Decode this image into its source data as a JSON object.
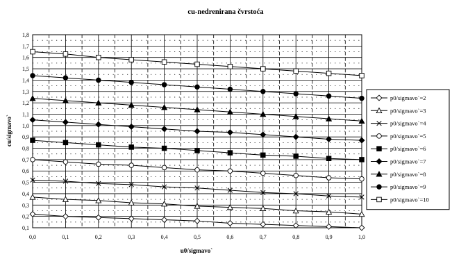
{
  "chart_data": {
    "type": "line",
    "title": "cu-nedrenirana čvrstoća",
    "xlabel": "u0/sigmavo`",
    "ylabel": "cu/sigmavo`",
    "xlim": [
      0,
      1
    ],
    "ylim": [
      0.1,
      1.8
    ],
    "x_ticks": [
      "0,0",
      "0,1",
      "0,2",
      "0,3",
      "0,4",
      "0,5",
      "0,6",
      "0,7",
      "0,8",
      "0,9",
      "1,0"
    ],
    "y_ticks": [
      "0,1",
      "0,2",
      "0,3",
      "0,4",
      "0,5",
      "0,6",
      "0,7",
      "0,8",
      "0,9",
      "1,0",
      "1,1",
      "1,2",
      "1,3",
      "1,4",
      "1,5",
      "1,6",
      "1,7",
      "1,8"
    ],
    "grid": true,
    "legend_position": "right",
    "x": [
      0.0,
      0.1,
      0.2,
      0.3,
      0.4,
      0.5,
      0.6,
      0.7,
      0.8,
      0.9,
      1.0
    ],
    "series": [
      {
        "name": "p0/sigmavo`=2",
        "marker": "diamond-open",
        "values": [
          0.22,
          0.2,
          0.19,
          0.18,
          0.17,
          0.16,
          0.14,
          0.13,
          0.12,
          0.11,
          0.1
        ]
      },
      {
        "name": "p0/sigmavo`=3",
        "marker": "triangle-open",
        "values": [
          0.37,
          0.35,
          0.34,
          0.32,
          0.31,
          0.29,
          0.28,
          0.27,
          0.25,
          0.24,
          0.22
        ]
      },
      {
        "name": "p0/sigmavo`=4",
        "marker": "x",
        "values": [
          0.52,
          0.51,
          0.49,
          0.48,
          0.46,
          0.45,
          0.43,
          0.41,
          0.4,
          0.38,
          0.37
        ]
      },
      {
        "name": "p0/sigmavo`=5",
        "marker": "circle-open",
        "values": [
          0.7,
          0.68,
          0.66,
          0.65,
          0.63,
          0.61,
          0.6,
          0.58,
          0.56,
          0.54,
          0.53
        ]
      },
      {
        "name": "p0/sigmavo`=6",
        "marker": "square-filled",
        "values": [
          0.87,
          0.85,
          0.83,
          0.81,
          0.8,
          0.78,
          0.76,
          0.74,
          0.73,
          0.71,
          0.7
        ]
      },
      {
        "name": "p0/sigmavo`=7",
        "marker": "diamond-filled",
        "values": [
          1.05,
          1.03,
          1.01,
          0.99,
          0.97,
          0.95,
          0.94,
          0.92,
          0.9,
          0.88,
          0.87
        ]
      },
      {
        "name": "p0/sigmavo`=8",
        "marker": "triangle-filled",
        "values": [
          1.24,
          1.22,
          1.2,
          1.18,
          1.16,
          1.14,
          1.12,
          1.1,
          1.08,
          1.06,
          1.04
        ]
      },
      {
        "name": "p0/sigmavo`=9",
        "marker": "circle-filled",
        "values": [
          1.44,
          1.42,
          1.4,
          1.38,
          1.36,
          1.34,
          1.32,
          1.3,
          1.28,
          1.26,
          1.24
        ]
      },
      {
        "name": "p0/sigmavo`=10",
        "marker": "square-open",
        "values": [
          1.65,
          1.63,
          1.6,
          1.58,
          1.56,
          1.54,
          1.52,
          1.5,
          1.48,
          1.46,
          1.44
        ]
      }
    ]
  }
}
